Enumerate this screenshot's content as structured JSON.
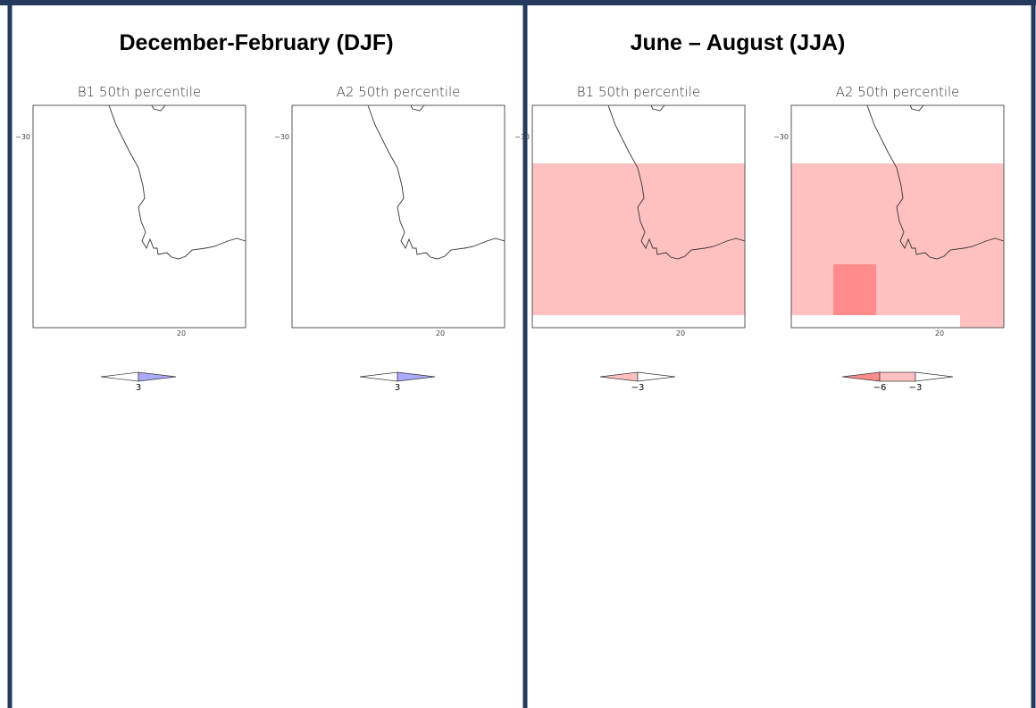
{
  "sections": [
    {
      "title": "December-February (DJF)",
      "maps": [
        {
          "title": "B1 50th percentile",
          "y_tick": "−30",
          "x_tick": "20",
          "legend_labels": [
            "3"
          ]
        },
        {
          "title": "A2 50th percentile",
          "y_tick": "−30",
          "x_tick": "20",
          "legend_labels": [
            "3"
          ]
        }
      ]
    },
    {
      "title": "June – August (JJA)",
      "maps": [
        {
          "title": "B1 50th percentile",
          "y_tick": "−30",
          "x_tick": "20",
          "legend_labels": [
            "−3"
          ]
        },
        {
          "title": "A2 50th percentile",
          "y_tick": "−30",
          "x_tick": "20",
          "legend_labels": [
            "−6",
            "−3"
          ]
        }
      ]
    }
  ]
}
